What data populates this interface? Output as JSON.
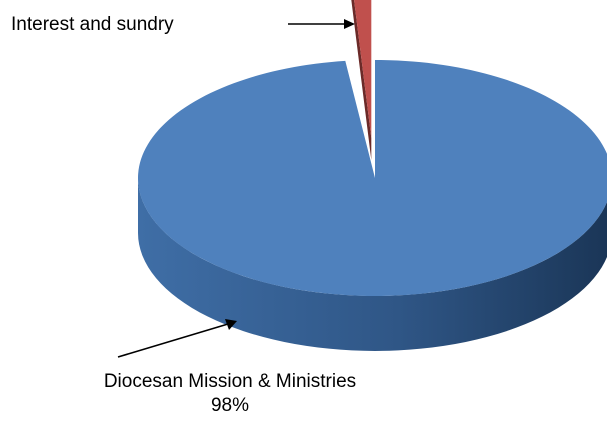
{
  "chart_data": {
    "type": "pie",
    "title": "",
    "style": "3d",
    "slices": [
      {
        "label": "Diocesan Mission & Ministries",
        "value": 98,
        "value_label": "98%",
        "color": "#4f81bd"
      },
      {
        "label": "Interest and sundry",
        "value": 2,
        "value_label": "",
        "color": "#c0504d"
      }
    ]
  }
}
